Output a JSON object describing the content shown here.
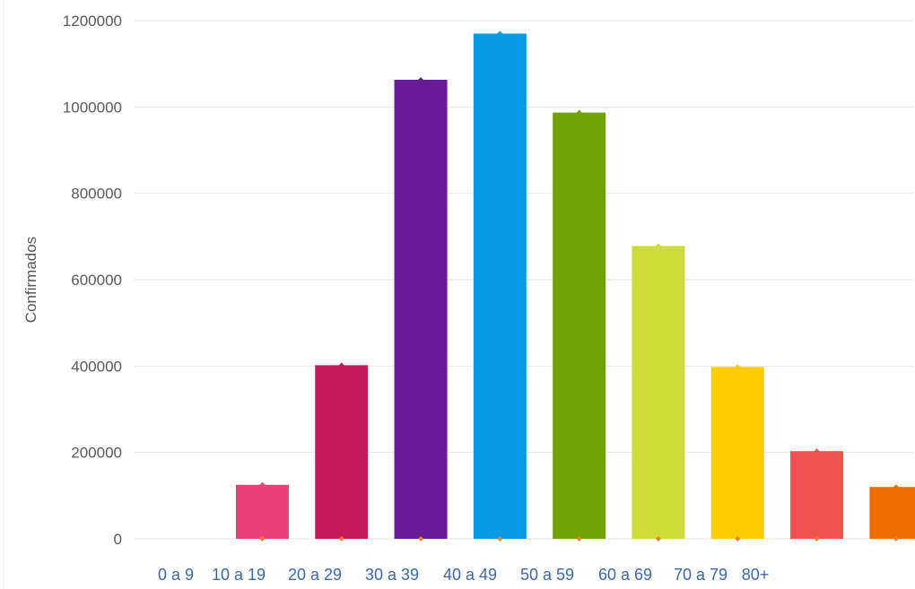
{
  "chart_data": {
    "type": "bar",
    "title": "",
    "ylabel": "Confirmados",
    "xlabel": "",
    "ylim": [
      0,
      1200000
    ],
    "yticks": [
      0,
      200000,
      400000,
      600000,
      800000,
      1000000,
      1200000
    ],
    "ytick_labels": [
      "0",
      "200000",
      "400000",
      "600000",
      "800000",
      "1000000",
      "1200000"
    ],
    "grid": true,
    "legend": "none",
    "x_labels": [
      "0 a 9",
      "10 a 19",
      "20 a 29",
      "30 a 39",
      "40 a 49",
      "50 a 59",
      "60 a 69",
      "70 a 79",
      "80+"
    ],
    "bars": [
      {
        "value": 0,
        "color": "#ffffff"
      },
      {
        "value": 125000,
        "color": "#e9407a"
      },
      {
        "value": 402000,
        "color": "#c21a5c"
      },
      {
        "value": 1063000,
        "color": "#691a99"
      },
      {
        "value": 1170000,
        "color": "#0a9ae3"
      },
      {
        "value": 987000,
        "color": "#6ea302"
      },
      {
        "value": 678000,
        "color": "#cddc39"
      },
      {
        "value": 398000,
        "color": "#ffcc00"
      },
      {
        "value": 203000,
        "color": "#ef5350"
      },
      {
        "value": 120000,
        "color": "#ef6c00"
      }
    ],
    "marker_color": "#e8822a"
  }
}
